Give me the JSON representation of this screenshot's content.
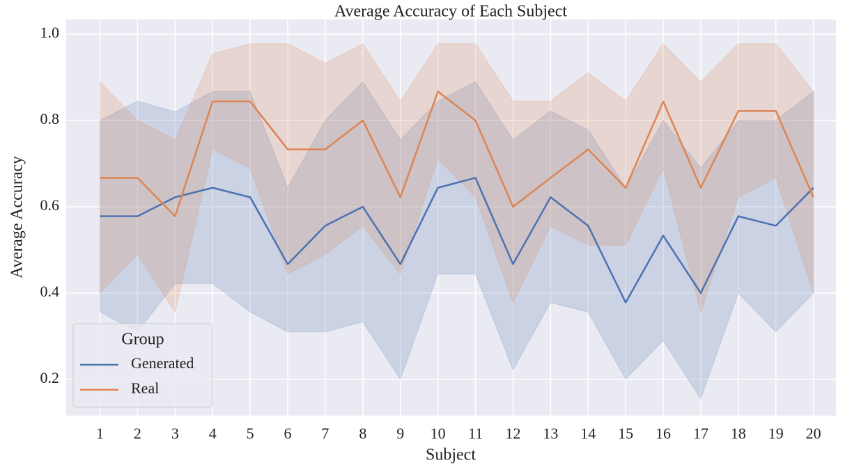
{
  "chart_data": {
    "type": "line",
    "title": "Average Accuracy of Each Subject",
    "xlabel": "Subject",
    "ylabel": "Average Accuracy",
    "x": [
      1,
      2,
      3,
      4,
      5,
      6,
      7,
      8,
      9,
      10,
      11,
      12,
      13,
      14,
      15,
      16,
      17,
      18,
      19,
      20
    ],
    "xlim": [
      0.1,
      20.6
    ],
    "xticks": [
      1,
      2,
      3,
      4,
      5,
      6,
      7,
      8,
      9,
      10,
      11,
      12,
      13,
      14,
      15,
      16,
      17,
      18,
      19,
      20
    ],
    "ylim": [
      0.116,
      1.034
    ],
    "yticks": [
      0.2,
      0.4,
      0.6,
      0.8,
      {
        "value": 1,
        "label": "1.0"
      }
    ],
    "grid": true,
    "legend_title": "Group",
    "legend": "lower left",
    "series": [
      {
        "name": "Generated",
        "color": "#4c72b0",
        "values": [
          0.578,
          0.578,
          0.622,
          0.644,
          0.622,
          0.467,
          0.556,
          0.6,
          0.467,
          0.644,
          0.667,
          0.467,
          0.622,
          0.556,
          0.378,
          0.533,
          0.4,
          0.578,
          0.556,
          0.644
        ],
        "upper": [
          0.8,
          0.845,
          0.82,
          0.867,
          0.867,
          0.644,
          0.8,
          0.89,
          0.755,
          0.845,
          0.89,
          0.755,
          0.822,
          0.778,
          0.644,
          0.8,
          0.69,
          0.8,
          0.8,
          0.867
        ],
        "lower": [
          0.356,
          0.31,
          0.422,
          0.422,
          0.356,
          0.31,
          0.31,
          0.333,
          0.2,
          0.444,
          0.444,
          0.222,
          0.378,
          0.356,
          0.2,
          0.29,
          0.155,
          0.4,
          0.31,
          0.4
        ]
      },
      {
        "name": "Real",
        "color": "#dd8452",
        "values": [
          0.667,
          0.667,
          0.578,
          0.844,
          0.844,
          0.733,
          0.733,
          0.8,
          0.622,
          0.867,
          0.8,
          0.6,
          0.667,
          0.733,
          0.644,
          0.844,
          0.644,
          0.822,
          0.822,
          0.622
        ],
        "upper": [
          0.889,
          0.8,
          0.755,
          0.955,
          0.978,
          0.978,
          0.933,
          0.978,
          0.845,
          0.978,
          0.978,
          0.845,
          0.845,
          0.911,
          0.845,
          0.978,
          0.889,
          0.978,
          0.978,
          0.867
        ],
        "lower": [
          0.4,
          0.489,
          0.355,
          0.733,
          0.689,
          0.444,
          0.489,
          0.555,
          0.444,
          0.711,
          0.622,
          0.378,
          0.555,
          0.511,
          0.511,
          0.689,
          0.355,
          0.622,
          0.667,
          0.4
        ]
      }
    ]
  }
}
